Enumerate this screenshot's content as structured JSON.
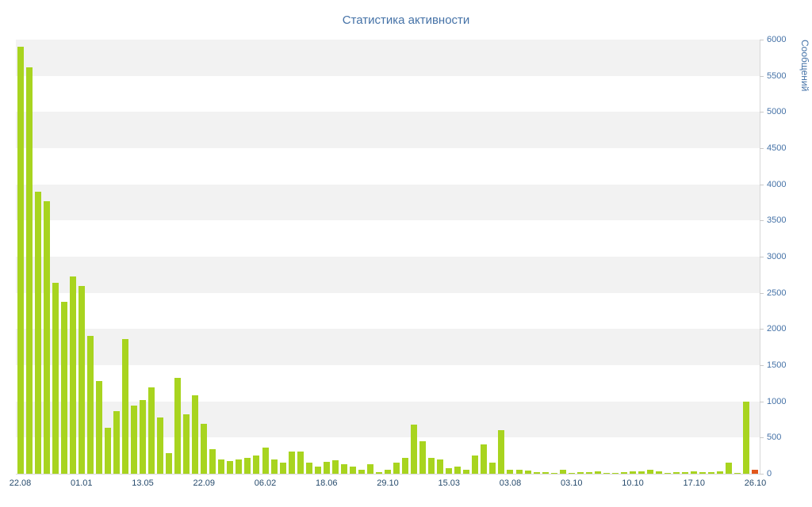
{
  "chart_data": {
    "type": "bar",
    "title": "Статистика активности",
    "ylabel": "Сообщений",
    "xlabel": "",
    "ylim": [
      0,
      6000
    ],
    "y_tick_step": 500,
    "band_step": 500,
    "grid": "alternating-horizontal-bands",
    "legend": "none",
    "values": [
      5900,
      5620,
      3900,
      3770,
      2640,
      2380,
      2730,
      2590,
      1900,
      1280,
      640,
      860,
      1860,
      945,
      1020,
      1190,
      780,
      290,
      1330,
      825,
      1080,
      690,
      340,
      200,
      175,
      200,
      220,
      250,
      360,
      200,
      155,
      310,
      310,
      155,
      100,
      165,
      185,
      130,
      100,
      55,
      130,
      25,
      55,
      150,
      220,
      680,
      450,
      220,
      200,
      80,
      100,
      55,
      250,
      400,
      150,
      600,
      55,
      55,
      45,
      25,
      25,
      15,
      55,
      15,
      25,
      25,
      30,
      15,
      15,
      25,
      30,
      35,
      55,
      30,
      15,
      25,
      25,
      30,
      25,
      20,
      30,
      150,
      15,
      1000,
      50
    ],
    "x_tick_labels": [
      {
        "index": 0,
        "label": "22.08"
      },
      {
        "index": 7,
        "label": "01.01"
      },
      {
        "index": 14,
        "label": "13.05"
      },
      {
        "index": 21,
        "label": "22.09"
      },
      {
        "index": 28,
        "label": "06.02"
      },
      {
        "index": 35,
        "label": "18.06"
      },
      {
        "index": 42,
        "label": "29.10"
      },
      {
        "index": 49,
        "label": "15.03"
      },
      {
        "index": 56,
        "label": "03.08"
      },
      {
        "index": 63,
        "label": "03.10"
      },
      {
        "index": 70,
        "label": "10.10"
      },
      {
        "index": 77,
        "label": "17.10"
      },
      {
        "index": 84,
        "label": "26.10"
      }
    ],
    "colors": {
      "bar": "#a8d41f",
      "last_bar": "#e2571c",
      "band": "#f2f2f2",
      "title_text": "#4572a7",
      "y_axis_text": "#4572a7",
      "x_axis_text": "#274b6d"
    }
  }
}
